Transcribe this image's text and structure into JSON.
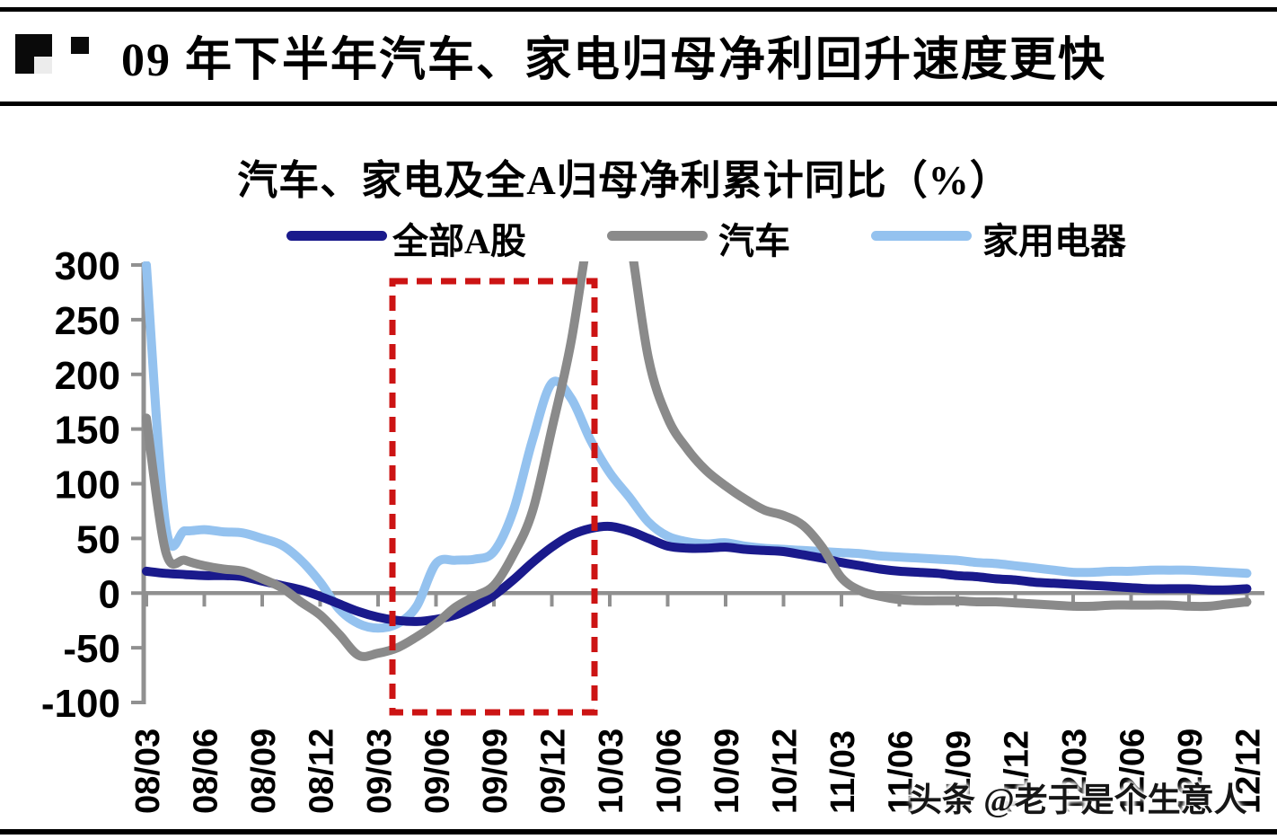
{
  "header": {
    "title": "09 年下半年汽车、家电归母净利回升速度更快"
  },
  "watermark": {
    "text": "头条 @老于是个生意人"
  },
  "chart_data": {
    "type": "line",
    "title": "汽车、家电及全A归母净利累计同比（%）",
    "ylabel": "",
    "xlabel": "",
    "ylim": [
      -100,
      300
    ],
    "yticks": [
      300,
      250,
      200,
      150,
      100,
      50,
      0,
      -50,
      -100
    ],
    "grid": false,
    "legend_position": "top",
    "axis_color": "#909090",
    "x_tick_labels": [
      "08/03",
      "08/06",
      "08/09",
      "08/12",
      "09/03",
      "09/06",
      "09/09",
      "09/12",
      "10/03",
      "10/06",
      "10/09",
      "10/12",
      "11/03",
      "11/06",
      "11/09",
      "11/12",
      "12/03",
      "12/06",
      "12/09",
      "12/12"
    ],
    "x_monthly": [
      "08/03",
      "08/04",
      "08/05",
      "08/06",
      "08/07",
      "08/08",
      "08/09",
      "08/10",
      "08/11",
      "08/12",
      "09/01",
      "09/02",
      "09/03",
      "09/04",
      "09/05",
      "09/06",
      "09/07",
      "09/08",
      "09/09",
      "09/10",
      "09/11",
      "09/12",
      "10/01",
      "10/02",
      "10/03",
      "10/04",
      "10/05",
      "10/06",
      "10/07",
      "10/08",
      "10/09",
      "10/10",
      "10/11",
      "10/12",
      "11/01",
      "11/02",
      "11/03",
      "11/04",
      "11/05",
      "11/06",
      "11/07",
      "11/08",
      "11/09",
      "11/10",
      "11/11",
      "11/12",
      "12/01",
      "12/02",
      "12/03",
      "12/04",
      "12/05",
      "12/06",
      "12/07",
      "12/08",
      "12/09",
      "12/10",
      "12/11",
      "12/12"
    ],
    "series": [
      {
        "name": "全部A股",
        "color": "#1a1a8c",
        "values": [
          20,
          18,
          17,
          16,
          16,
          15,
          11,
          7,
          3,
          -3,
          -10,
          -17,
          -22,
          -25,
          -26,
          -24,
          -20,
          -12,
          -2,
          12,
          28,
          42,
          53,
          59,
          61,
          57,
          50,
          43,
          41,
          41,
          42,
          40,
          39,
          38,
          35,
          32,
          28,
          25,
          22,
          20,
          19,
          18,
          16,
          15,
          13,
          12,
          10,
          9,
          8,
          7,
          6,
          5,
          4,
          4,
          4,
          3,
          3,
          4
        ]
      },
      {
        "name": "汽车",
        "color": "#8a8a8a",
        "note": "values above 300 are clipped by the axis maximum",
        "values": [
          160,
          38,
          30,
          25,
          22,
          20,
          13,
          5,
          -8,
          -20,
          -38,
          -57,
          -55,
          -50,
          -40,
          -28,
          -13,
          -3,
          7,
          35,
          75,
          150,
          230,
          340,
          420,
          330,
          215,
          160,
          132,
          112,
          98,
          86,
          76,
          71,
          62,
          42,
          14,
          2,
          -3,
          -6,
          -7,
          -7,
          -7,
          -8,
          -8,
          -9,
          -10,
          -11,
          -12,
          -12,
          -11,
          -11,
          -11,
          -11,
          -12,
          -12,
          -10,
          -8
        ]
      },
      {
        "name": "家用电器",
        "color": "#94c2ef",
        "values": [
          300,
          62,
          57,
          58,
          56,
          55,
          50,
          44,
          30,
          10,
          -15,
          -28,
          -32,
          -28,
          -12,
          27,
          30,
          31,
          38,
          75,
          140,
          192,
          178,
          140,
          110,
          88,
          65,
          52,
          47,
          45,
          46,
          43,
          41,
          40,
          39,
          38,
          37,
          36,
          34,
          33,
          32,
          31,
          30,
          28,
          27,
          25,
          23,
          21,
          19,
          19,
          20,
          20,
          21,
          21,
          21,
          20,
          19,
          18
        ]
      }
    ],
    "highlight_box": {
      "from_month": "09/03",
      "to_month": "10/02",
      "y_from": -100,
      "y_to": 300,
      "color": "#cc1414",
      "style": "dashed"
    }
  }
}
